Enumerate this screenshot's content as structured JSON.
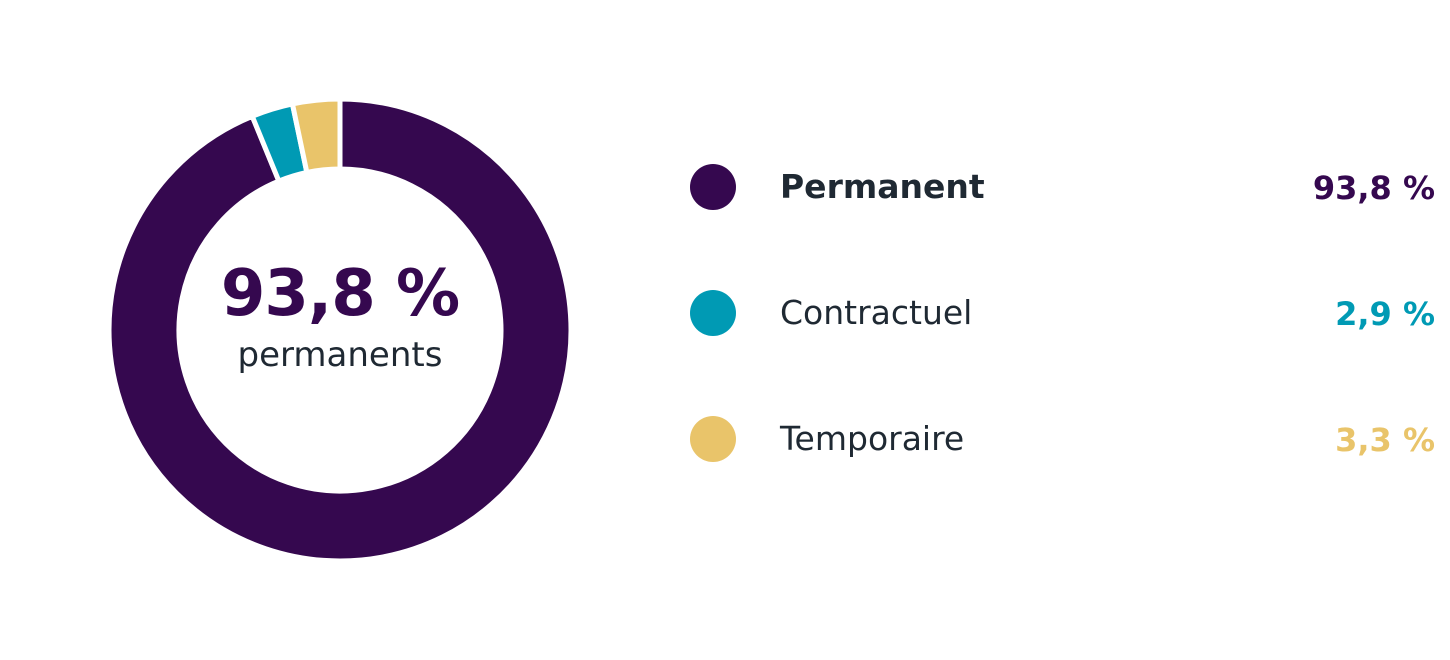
{
  "chart_data": {
    "type": "pie",
    "series": [
      {
        "name": "Permanent",
        "value_label": "93,8 %",
        "color": "#35084f",
        "bold": true,
        "value": 93.8
      },
      {
        "name": "Contractuel",
        "value_label": "2,9 %",
        "color": "#009ab4",
        "bold": false,
        "value": 2.9
      },
      {
        "name": "Temporaire",
        "value_label": "3,3 %",
        "color": "#e9c46a",
        "bold": false,
        "value": 3.3
      }
    ],
    "center": {
      "value": "93,8 %",
      "label": "permanents",
      "color": "#35084f"
    }
  }
}
